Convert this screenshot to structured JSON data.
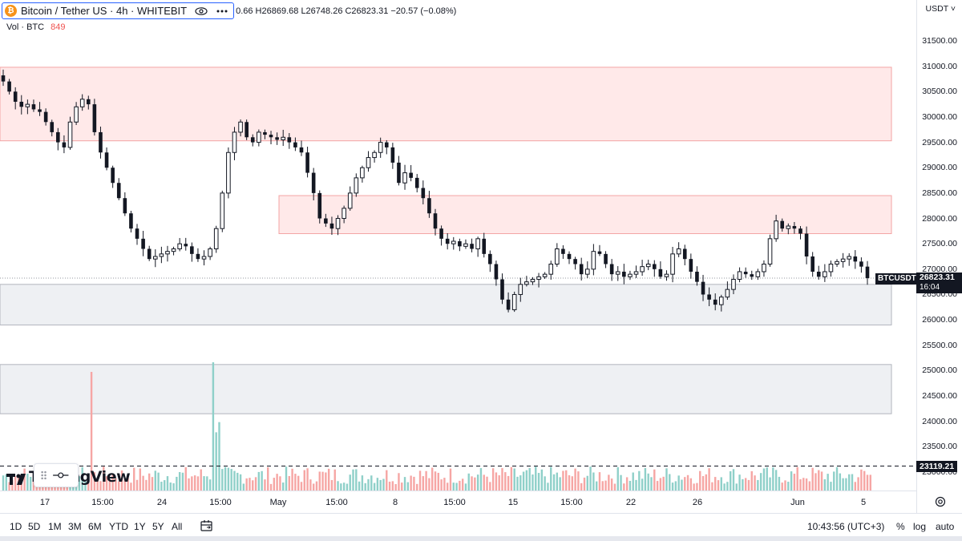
{
  "legend": {
    "symbol_title": "Bitcoin / Tether US · 4h · WHITEBIT",
    "ohlc_text": "0.66  H26869.68  L26748.26  C26823.31  −20.57 (−0.08%)",
    "vol_label": "Vol · BTC",
    "vol_value": "849"
  },
  "icons": {
    "coin": "bitcoin-icon",
    "eye": "eye-icon",
    "more": "more-icon",
    "settings": "gear-icon",
    "goto": "goto-date-icon",
    "drag": "drag-handle-icon"
  },
  "price_axis": {
    "currency": "USDT ˅",
    "ticks": [
      "31500.00",
      "31000.00",
      "30500.00",
      "30000.00",
      "29500.00",
      "29000.00",
      "28500.00",
      "28000.00",
      "27500.00",
      "27000.00",
      "26500.00",
      "26000.00",
      "25500.00",
      "25000.00",
      "24500.00",
      "24000.00",
      "23500.00",
      "23000.00"
    ],
    "last_price": "26823.31",
    "countdown": "16:04",
    "symbol_tag": "BTCUSDT",
    "hline_price": "23119.21"
  },
  "time_axis": {
    "ticks": [
      "17",
      "15:00",
      "24",
      "15:00",
      "May",
      "15:00",
      "8",
      "15:00",
      "15",
      "15:00",
      "22",
      "26",
      "Jun",
      "5"
    ]
  },
  "bottom_bar": {
    "ranges": [
      "1D",
      "5D",
      "1M",
      "3M",
      "6M",
      "YTD",
      "1Y",
      "5Y",
      "All"
    ],
    "clock": "10:43:56 (UTC+3)",
    "percent": "%",
    "log": "log",
    "auto": "auto"
  },
  "branding": {
    "logo_text": "TradingView"
  },
  "colors": {
    "up": "#131722",
    "down": "#131722",
    "vol_up": "#26a69a",
    "vol_down": "#ef5350",
    "resistance_zone": "#ffd9d9",
    "support_zone": "#e8eaef",
    "accent": "#2962ff"
  },
  "chart_data": {
    "type": "candlestick",
    "interval": "4h",
    "zones": [
      {
        "kind": "resistance",
        "from": 29530,
        "to": 30980
      },
      {
        "kind": "resistance",
        "from": 27700,
        "to": 28450
      },
      {
        "kind": "support",
        "from": 25900,
        "to": 26700
      },
      {
        "kind": "support",
        "from": 24150,
        "to": 25120
      }
    ],
    "horizontal_line": 23119.21,
    "last_close": 26823.31,
    "closes": [
      30700,
      30500,
      30300,
      30200,
      30250,
      30150,
      30100,
      29900,
      29700,
      29500,
      29400,
      29900,
      30200,
      30350,
      30250,
      29700,
      29300,
      29000,
      28700,
      28400,
      28100,
      27800,
      27600,
      27400,
      27200,
      27250,
      27300,
      27350,
      27400,
      27500,
      27450,
      27300,
      27200,
      27250,
      27400,
      27800,
      28500,
      29300,
      29700,
      29900,
      29600,
      29500,
      29700,
      29650,
      29600,
      29550,
      29600,
      29500,
      29400,
      29300,
      28900,
      28500,
      28000,
      27900,
      27800,
      28000,
      28200,
      28500,
      28800,
      29000,
      29200,
      29300,
      29500,
      29400,
      29100,
      28700,
      28900,
      28800,
      28600,
      28400,
      28100,
      27800,
      27600,
      27500,
      27550,
      27450,
      27500,
      27400,
      27600,
      27300,
      27100,
      26800,
      26400,
      26200,
      26500,
      26700,
      26750,
      26800,
      26850,
      26900,
      27100,
      27400,
      27300,
      27200,
      27100,
      26900,
      27000,
      27350,
      27300,
      27100,
      26900,
      26950,
      26850,
      26900,
      26950,
      27050,
      27100,
      27000,
      26850,
      26900,
      27300,
      27400,
      27200,
      26950,
      26750,
      26500,
      26400,
      26300,
      26450,
      26600,
      26800,
      26950,
      26900,
      26850,
      26950,
      27100,
      27600,
      27950,
      27800,
      27850,
      27800,
      27700,
      27250,
      26950,
      26850,
      26950,
      27100,
      27150,
      27200,
      27250,
      27150,
      27050,
      26823
    ]
  }
}
